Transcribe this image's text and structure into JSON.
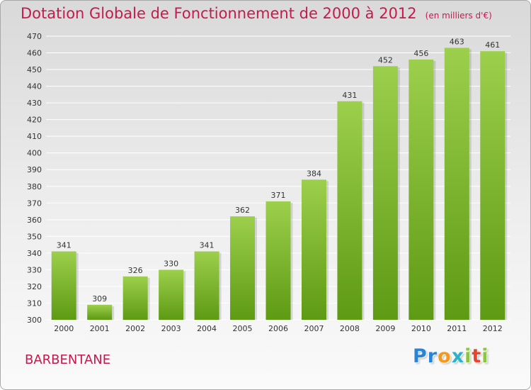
{
  "chart_data": {
    "type": "bar",
    "title": "Dotation Globale de Fonctionnement de 2000 à 2012",
    "subtitle": "(en milliers d'€)",
    "categories": [
      "2000",
      "2001",
      "2002",
      "2003",
      "2004",
      "2005",
      "2006",
      "2007",
      "2008",
      "2009",
      "2010",
      "2011",
      "2012"
    ],
    "values": [
      341,
      309,
      326,
      330,
      341,
      362,
      371,
      384,
      431,
      452,
      456,
      463,
      461
    ],
    "ylim": [
      300,
      470
    ],
    "yticks": [
      300,
      310,
      320,
      330,
      340,
      350,
      360,
      370,
      380,
      390,
      400,
      410,
      420,
      430,
      440,
      450,
      460,
      470
    ],
    "xlabel": "",
    "ylabel": "",
    "grid": true
  },
  "commune": "BARBENTANE",
  "logo": {
    "letters": [
      "P",
      "r",
      "o",
      "x",
      "i",
      "t",
      "i"
    ]
  },
  "colors": {
    "title": "#c41a4d",
    "bar_top": "#9ccf4c",
    "bar_bottom": "#5e9a14",
    "grid": "#ffffff",
    "axis_text": "#333333",
    "logo": [
      "#2b83d6",
      "#2b83d6",
      "#f39a1e",
      "#2bb3c9",
      "#8cc63f",
      "#e8432d",
      "#8cc63f"
    ]
  }
}
